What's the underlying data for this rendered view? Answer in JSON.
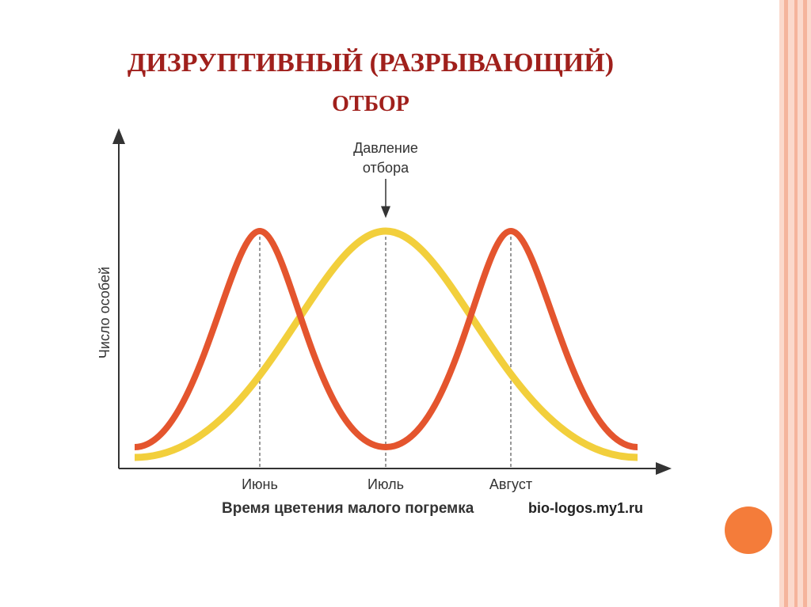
{
  "title": {
    "line1": "ДИЗРУПТИВНЫЙ (РАЗРЫВАЮЩИЙ)",
    "line2": "ОТБОР"
  },
  "diagram": {
    "annotation": [
      "Давление",
      "отбора"
    ],
    "y_axis_label": "Число особей",
    "x_labels": [
      "Июнь",
      "Июль",
      "Август"
    ],
    "x_axis_label": "Время цветения малого погремка",
    "watermark": "bio-logos.my1.ru"
  }
}
